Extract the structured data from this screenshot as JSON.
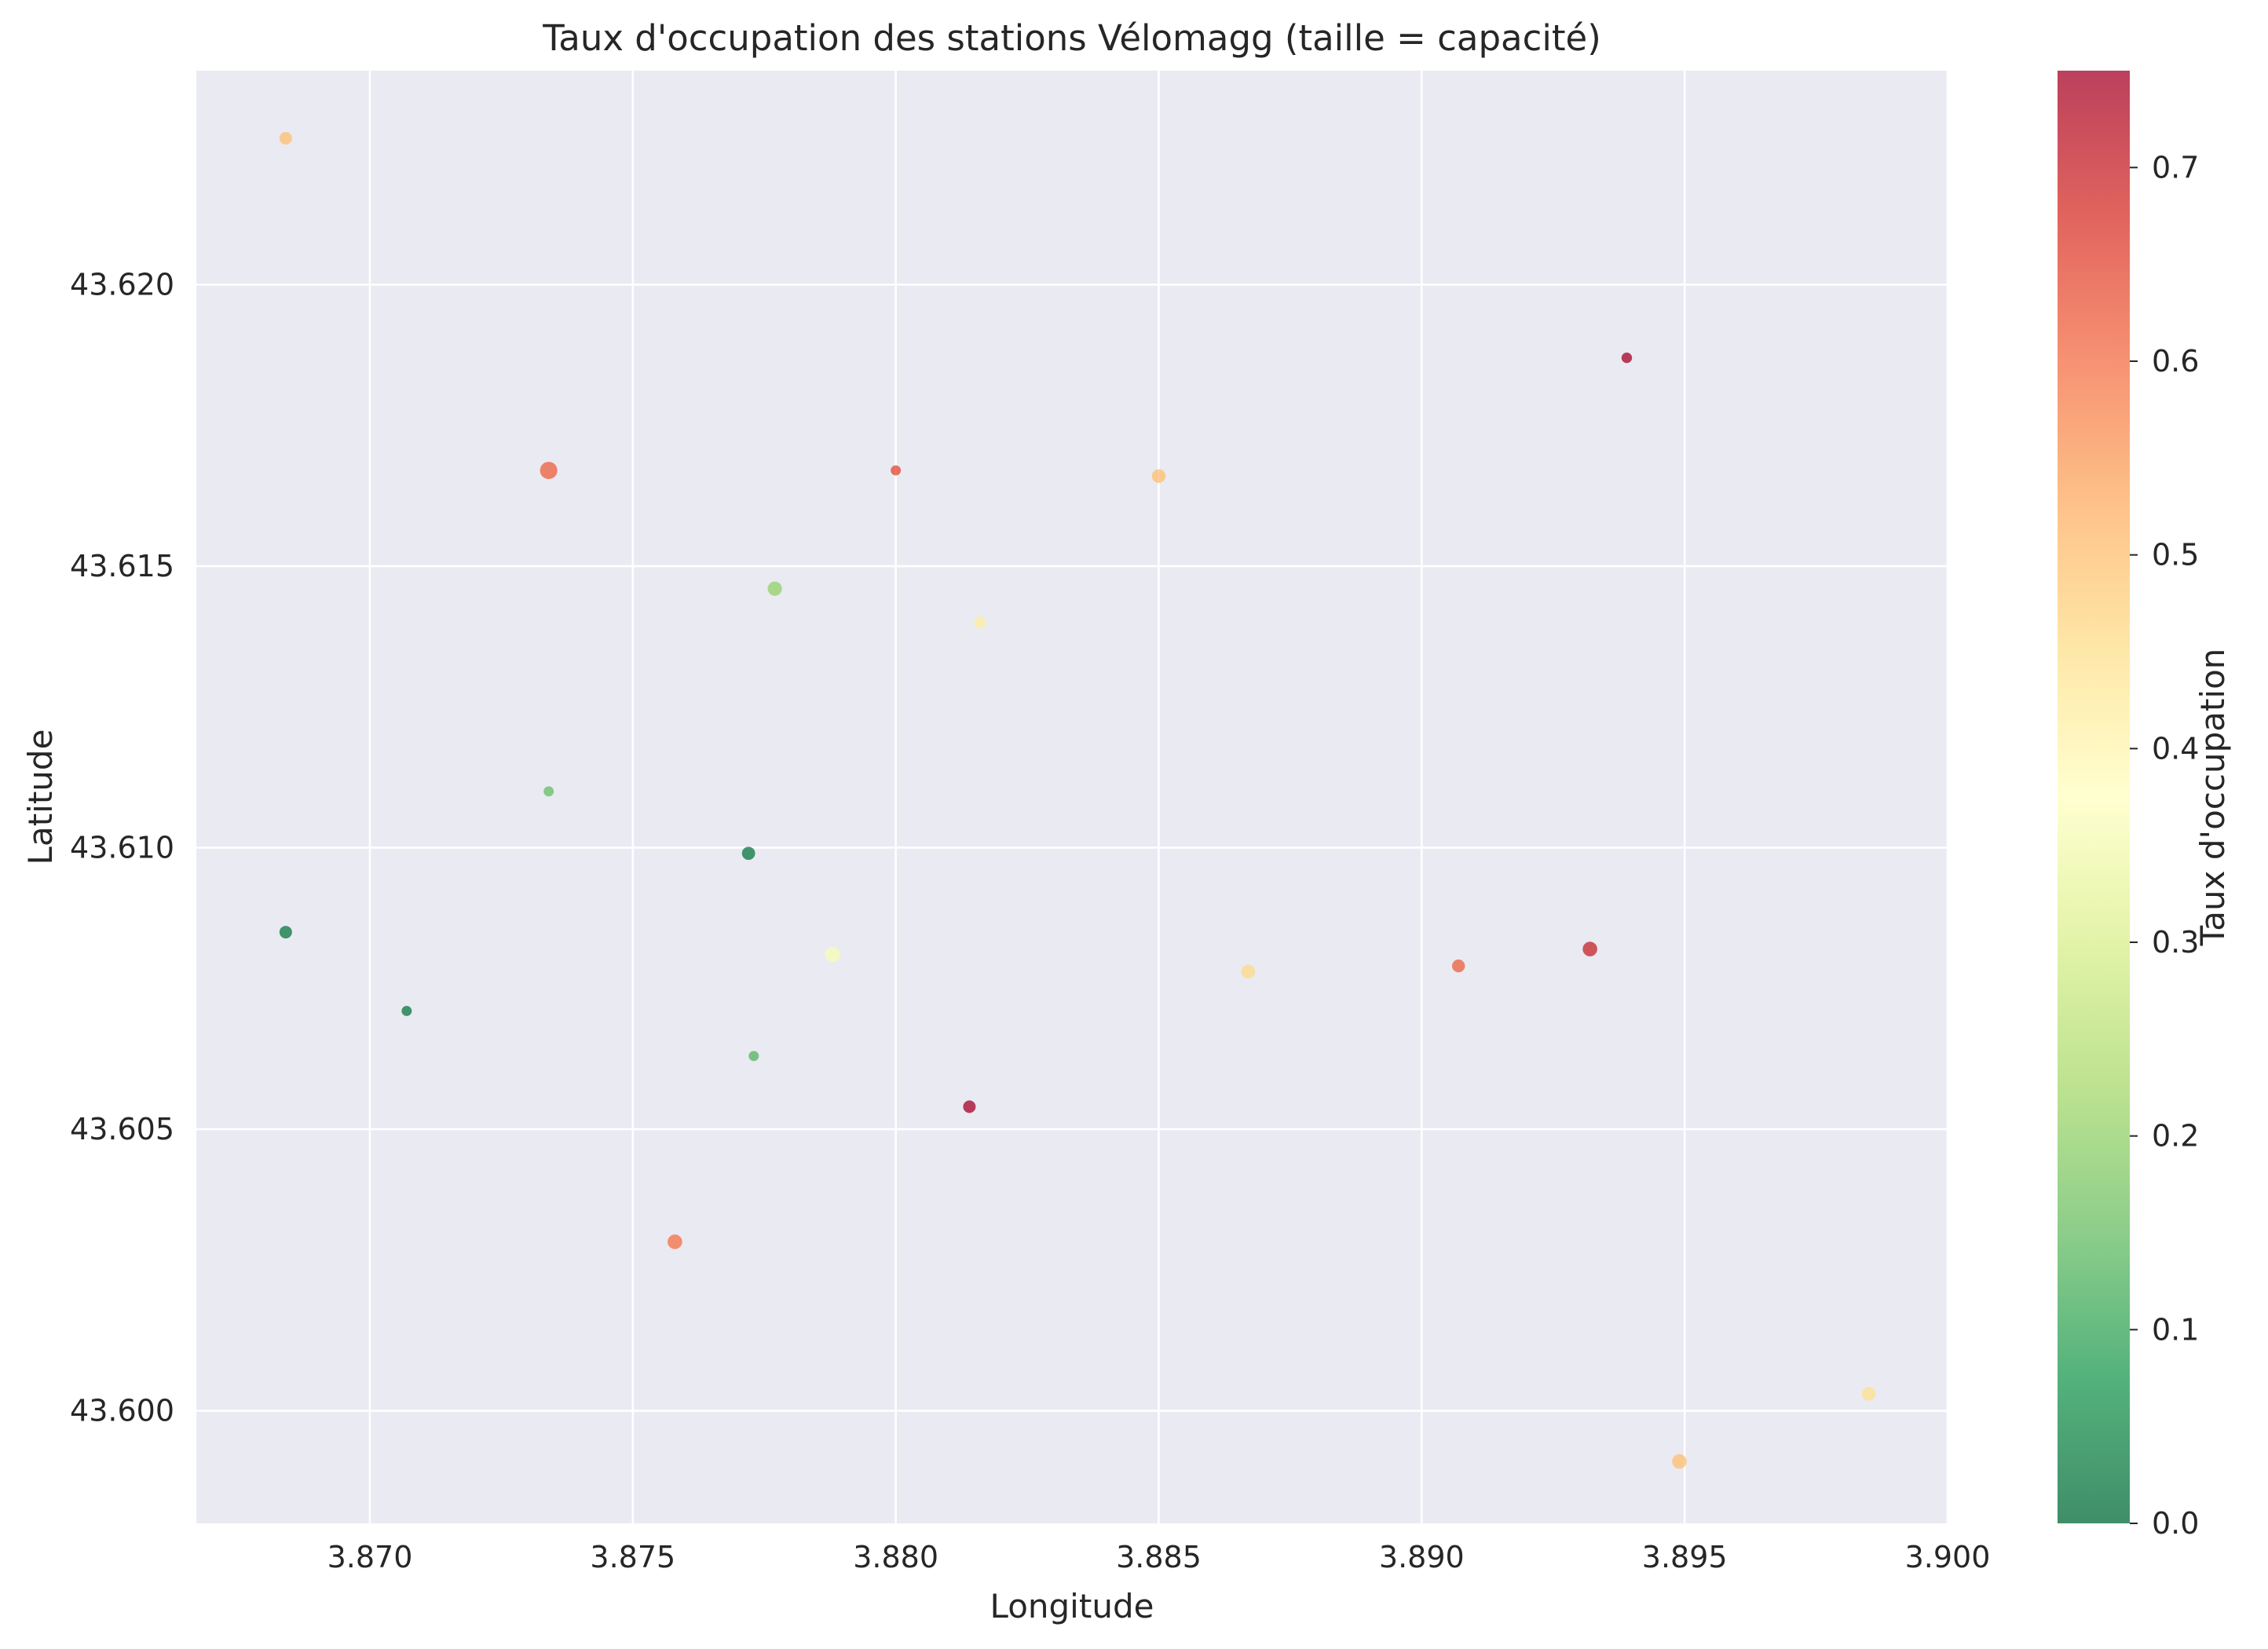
{
  "chart_data": {
    "type": "scatter",
    "title": "Taux d'occupation des stations Vélomagg (taille = capacité)",
    "xlabel": "Longitude",
    "ylabel": "Latitude",
    "xlim": [
      3.8667,
      3.9
    ],
    "ylim": [
      43.598,
      43.6238
    ],
    "x_ticks": [
      3.87,
      3.875,
      3.88,
      3.885,
      3.89,
      3.895,
      3.9
    ],
    "x_tick_labels": [
      "3.870",
      "3.875",
      "3.880",
      "3.885",
      "3.890",
      "3.895",
      "3.900"
    ],
    "y_ticks": [
      43.6,
      43.605,
      43.61,
      43.615,
      43.62
    ],
    "y_tick_labels": [
      "43.600",
      "43.605",
      "43.610",
      "43.615",
      "43.620"
    ],
    "grid": true,
    "colorbar": {
      "label": "Taux d'occupation",
      "range": [
        0,
        0.75
      ],
      "ticks": [
        0.0,
        0.1,
        0.2,
        0.3,
        0.4,
        0.5,
        0.6,
        0.7
      ],
      "tick_labels": [
        "0.0",
        "0.1",
        "0.2",
        "0.3",
        "0.4",
        "0.5",
        "0.6",
        "0.7"
      ],
      "colormap": "RdYlGn_r"
    },
    "points": [
      {
        "x": 3.8684,
        "y": 43.6226,
        "occupancy": 0.5,
        "capacity": 20
      },
      {
        "x": 3.8939,
        "y": 43.6187,
        "occupancy": 0.75,
        "capacity": 14
      },
      {
        "x": 3.8734,
        "y": 43.6167,
        "occupancy": 0.62,
        "capacity": 38
      },
      {
        "x": 3.88,
        "y": 43.6167,
        "occupancy": 0.65,
        "capacity": 13
      },
      {
        "x": 3.885,
        "y": 43.6166,
        "occupancy": 0.5,
        "capacity": 24
      },
      {
        "x": 3.8777,
        "y": 43.6146,
        "occupancy": 0.2,
        "capacity": 26
      },
      {
        "x": 3.8816,
        "y": 43.614,
        "occupancy": 0.42,
        "capacity": 18
      },
      {
        "x": 3.8734,
        "y": 43.611,
        "occupancy": 0.15,
        "capacity": 13
      },
      {
        "x": 3.8772,
        "y": 43.6099,
        "occupancy": 0.02,
        "capacity": 22
      },
      {
        "x": 3.8684,
        "y": 43.6085,
        "occupancy": 0.02,
        "capacity": 20
      },
      {
        "x": 3.8788,
        "y": 43.6081,
        "occupancy": 0.36,
        "capacity": 30
      },
      {
        "x": 3.8932,
        "y": 43.6082,
        "occupancy": 0.7,
        "capacity": 27
      },
      {
        "x": 3.8907,
        "y": 43.6079,
        "occupancy": 0.62,
        "capacity": 21
      },
      {
        "x": 3.8867,
        "y": 43.6078,
        "occupancy": 0.46,
        "capacity": 24
      },
      {
        "x": 3.8707,
        "y": 43.6071,
        "occupancy": 0.02,
        "capacity": 13
      },
      {
        "x": 3.8773,
        "y": 43.6063,
        "occupancy": 0.13,
        "capacity": 13
      },
      {
        "x": 3.8814,
        "y": 43.6054,
        "occupancy": 0.75,
        "capacity": 20
      },
      {
        "x": 3.8758,
        "y": 43.603,
        "occupancy": 0.6,
        "capacity": 27
      },
      {
        "x": 3.8985,
        "y": 43.6003,
        "occupancy": 0.45,
        "capacity": 24
      },
      {
        "x": 3.8949,
        "y": 43.5991,
        "occupancy": 0.5,
        "capacity": 27
      }
    ]
  }
}
